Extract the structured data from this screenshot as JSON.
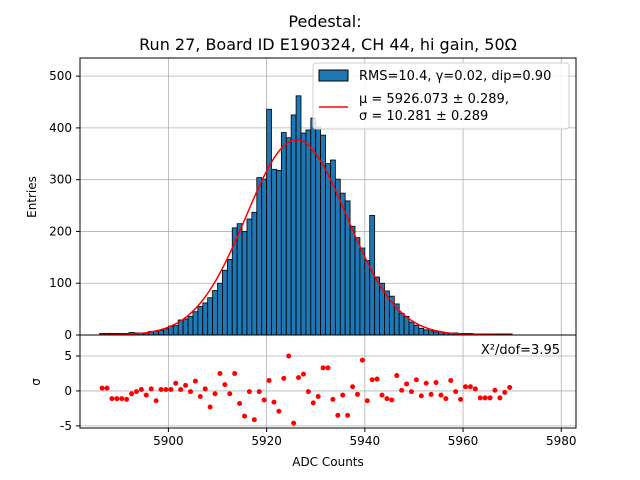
{
  "chart_data": [
    {
      "type": "bar",
      "title_line1": "Pedestal:",
      "title_line2": "Run 27, Board ID E190324, CH 44, hi gain, 50Ω",
      "ylabel": "Entries",
      "xlim": [
        5882,
        5983
      ],
      "ylim": [
        0,
        535
      ],
      "yticks": [
        0,
        100,
        200,
        300,
        400,
        500
      ],
      "grid": true,
      "legend_position": "top-right",
      "bin_width": 1,
      "bin_start": 5886,
      "counts": [
        3,
        3,
        3,
        3,
        3,
        3,
        5,
        4,
        4,
        4,
        7,
        7,
        9,
        12,
        17,
        18,
        29,
        31,
        36,
        45,
        55,
        62,
        72,
        86,
        100,
        125,
        146,
        207,
        215,
        200,
        224,
        237,
        304,
        301,
        436,
        320,
        318,
        391,
        381,
        425,
        462,
        390,
        396,
        419,
        402,
        386,
        331,
        338,
        301,
        274,
        259,
        210,
        188,
        168,
        144,
        231,
        112,
        100,
        85,
        75,
        60,
        42,
        36,
        25,
        19,
        13,
        10,
        8,
        6,
        6,
        4,
        4,
        4,
        3,
        3,
        3,
        2,
        2,
        2,
        2,
        2,
        2,
        2,
        2
      ],
      "series": [
        {
          "name": "RMS=10.4, γ=0.02, dip=0.90",
          "color": "#1f77b4"
        },
        {
          "name_line1": "μ = 5926.073 ± 0.289,",
          "name_line2": "σ = 10.281 ± 0.289",
          "color": "#ff0000"
        }
      ],
      "fit": {
        "mu": 5926.073,
        "sigma": 10.281,
        "amplitude": 377
      }
    },
    {
      "type": "scatter",
      "xlabel": "ADC Counts",
      "ylabel": "σ",
      "xticks": [
        5900,
        5920,
        5940,
        5960,
        5980
      ],
      "yticks": [
        -5,
        0,
        5
      ],
      "ylim": [
        -5.3,
        8.0
      ],
      "annotation": "X²/dof=3.95",
      "color": "#ff0000",
      "x": [
        5886,
        5887,
        5888,
        5889,
        5890,
        5891,
        5892,
        5893,
        5894,
        5895,
        5896,
        5897,
        5898,
        5899,
        5900,
        5901,
        5902,
        5903,
        5904,
        5905,
        5906,
        5907,
        5908,
        5909,
        5910,
        5911,
        5912,
        5913,
        5914,
        5915,
        5916,
        5917,
        5918,
        5919,
        5920,
        5921,
        5922,
        5923,
        5924,
        5925,
        5926,
        5927,
        5928,
        5929,
        5930,
        5931,
        5932,
        5933,
        5934,
        5935,
        5936,
        5937,
        5938,
        5939,
        5940,
        5941,
        5942,
        5943,
        5944,
        5945,
        5946,
        5947,
        5948,
        5949,
        5950,
        5951,
        5952,
        5953,
        5954,
        5955,
        5956,
        5957,
        5958,
        5959,
        5960,
        5961,
        5962,
        5963,
        5964,
        5965,
        5966,
        5967,
        5968,
        5969
      ],
      "y": [
        0.4,
        0.4,
        -1.1,
        -1.1,
        -1.1,
        -1.2,
        -0.4,
        -0.1,
        0.2,
        -0.6,
        0.3,
        -1.4,
        0.2,
        0.2,
        0.2,
        1.1,
        0.2,
        0.8,
        -0.1,
        1.4,
        -0.8,
        0.3,
        -2.3,
        -0.4,
        2.5,
        0.9,
        -0.4,
        2.5,
        -1.8,
        -3.6,
        -0.1,
        -4.1,
        -0.1,
        -1.3,
        1.5,
        -1.6,
        -2.9,
        1.8,
        5.0,
        -4.6,
        1.9,
        2.4,
        -0.1,
        -1.7,
        -0.8,
        3.3,
        3.3,
        -1.2,
        -3.5,
        -0.6,
        -3.5,
        0.6,
        -0.5,
        4.4,
        -1.4,
        1.6,
        1.7,
        -0.6,
        -1.1,
        -1.3,
        2.2,
        0.1,
        1.0,
        -0.1,
        1.6,
        -0.7,
        1.1,
        -0.5,
        1.2,
        -0.6,
        -1.1,
        1.5,
        -0.1,
        -1.2,
        0.6,
        0.6,
        0.3,
        -1.0,
        -1.0,
        -1.0,
        0.1,
        -1.0,
        -0.2,
        0.5
      ]
    }
  ]
}
